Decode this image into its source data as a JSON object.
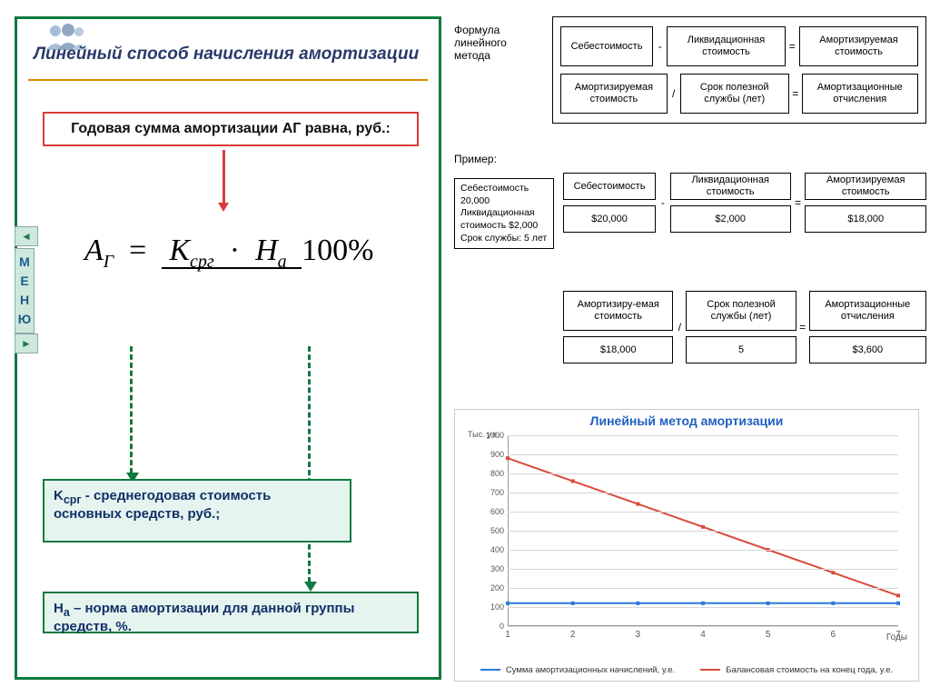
{
  "left_panel": {
    "title": "Линейный способ начисления амортизации",
    "annual_label": "Годовая сумма амортизации AГ равна, руб.:",
    "formula": {
      "lhs": "A",
      "lhs_sub": "Г",
      "num_k": "K",
      "num_k_sub": "срг",
      "num_h": "H",
      "num_h_sub": "а",
      "den": "100%"
    },
    "def_k_html": "K<sub>срг</sub> - среднегодовая стоимость основных средств, руб.;",
    "def_n_html": "H<sub>а</sub> – норма амортизации для данной группы средств, %.",
    "menu_letters": [
      "М",
      "Е",
      "Н",
      "Ю"
    ],
    "colors": {
      "border": "#0d7a3f",
      "red": "#d93b3b",
      "title": "#2b3a6b",
      "underline": "#e08b00"
    }
  },
  "formula_block": {
    "label_lines": [
      "Формула",
      "линейного",
      "метода"
    ],
    "row1": {
      "a": "Себестоимость",
      "op1": "-",
      "b": "Ликвидационная стоимость",
      "op2": "=",
      "c": "Амортизируемая стоимость"
    },
    "row2": {
      "a": "Амортизируемая стоимость",
      "op1": "/",
      "b": "Срок полезной службы (лет)",
      "op2": "=",
      "c": "Амортизационные отчисления"
    }
  },
  "example": {
    "label": "Пример:",
    "info": [
      "Себестоимость 20,000",
      "Ликвидационная стоимость $2,000",
      "Срок службы: 5 лет"
    ],
    "row1": {
      "a_top": "Себестоимость",
      "a_bot": "$20,000",
      "op1": "-",
      "b_top": "Ликвидационная стоимость",
      "b_bot": "$2,000",
      "op2": "=",
      "c_top": "Амортизируемая стоимость",
      "c_bot": "$18,000"
    },
    "row2": {
      "a_top": "Амортизиру-емая стоимость",
      "a_bot": "$18,000",
      "op1": "/",
      "b_top": "Срок полезной службы (лет)",
      "b_bot": "5",
      "op2": "=",
      "c_top": "Амортизационные отчисления",
      "c_bot": "$3,600"
    }
  },
  "chart": {
    "title": "Линейный метод амортизации",
    "y_axis_label": "Тыс. у.е.",
    "x_axis_label": "Годы",
    "y_ticks": [
      0,
      100,
      200,
      300,
      400,
      500,
      600,
      700,
      800,
      900,
      1000
    ],
    "x_ticks": [
      1,
      2,
      3,
      4,
      5,
      6,
      7
    ],
    "series": [
      {
        "name": "Сумма амортизационных начислений, у.е.",
        "color": "#2b7bd9",
        "points": [
          [
            1,
            120
          ],
          [
            2,
            120
          ],
          [
            3,
            120
          ],
          [
            4,
            120
          ],
          [
            5,
            120
          ],
          [
            6,
            120
          ],
          [
            7,
            120
          ]
        ]
      },
      {
        "name": "Балансовая стоимость на конец года, у.е.",
        "color": "#d94b3b",
        "points": [
          [
            1,
            880
          ],
          [
            2,
            760
          ],
          [
            3,
            640
          ],
          [
            4,
            520
          ],
          [
            5,
            400
          ],
          [
            6,
            280
          ],
          [
            7,
            160
          ]
        ]
      }
    ],
    "ylim": [
      0,
      1000
    ],
    "xlim": [
      1,
      7
    ],
    "background": "#ffffff",
    "grid_color": "#d6d6d6"
  }
}
